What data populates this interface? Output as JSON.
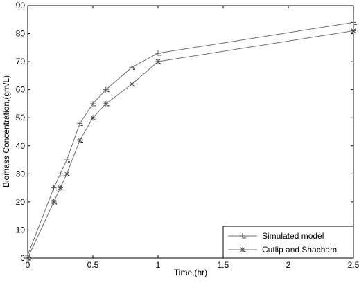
{
  "chart_data": {
    "type": "line",
    "title": "",
    "xlabel": "Time,(hr)",
    "ylabel": "Biomass Concentration,(gm/L)",
    "xlim": [
      0,
      2.5
    ],
    "ylim": [
      0,
      90
    ],
    "xticks": [
      "0",
      "0.5",
      "1",
      "1.5",
      "2",
      "2.5"
    ],
    "yticks": [
      "0",
      "10",
      "20",
      "30",
      "40",
      "50",
      "60",
      "70",
      "80",
      "90"
    ],
    "grid": false,
    "legend_position": "bottom-right",
    "series": [
      {
        "name": "Simulated model",
        "marker": "plus",
        "color": "#707070",
        "x": [
          0,
          0.2,
          0.25,
          0.3,
          0.4,
          0.5,
          0.6,
          0.8,
          1.0,
          2.5
        ],
        "y": [
          1,
          25,
          30,
          35,
          48,
          55,
          60,
          68,
          73,
          84
        ]
      },
      {
        "name": "Cutlip and Shacham",
        "marker": "star",
        "color": "#707070",
        "x": [
          0,
          0.2,
          0.25,
          0.3,
          0.4,
          0.5,
          0.6,
          0.8,
          1.0,
          2.5
        ],
        "y": [
          0,
          20,
          25,
          30,
          42,
          50,
          55,
          62,
          70,
          81
        ]
      }
    ]
  }
}
